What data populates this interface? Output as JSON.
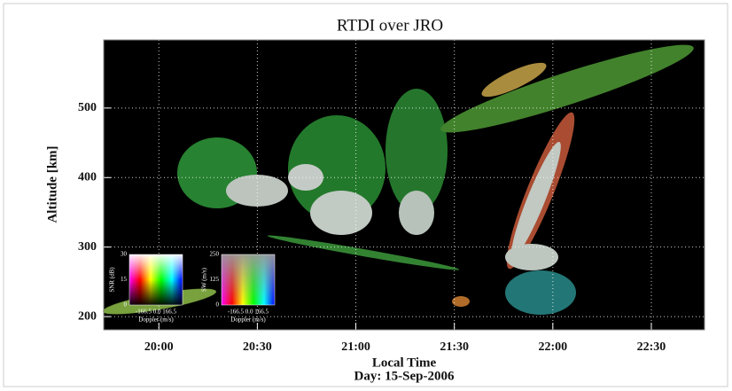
{
  "chart_data": {
    "type": "image",
    "title": "RTDI over JRO",
    "x_label": "Local Time",
    "subtitle": "Day: 15-Sep-2006",
    "y_label": "Altitude [km]",
    "xlim": [
      19.72,
      22.77
    ],
    "xticks": [
      {
        "value": 20,
        "label": "20:00"
      },
      {
        "value": 20.5,
        "label": "20:30"
      },
      {
        "value": 21,
        "label": "21:00"
      },
      {
        "value": 21.5,
        "label": "21:30"
      },
      {
        "value": 22,
        "label": "22:00"
      },
      {
        "value": 22.5,
        "label": "22:30"
      }
    ],
    "ylim": [
      181,
      598
    ],
    "yticks": [
      200,
      300,
      400,
      500
    ],
    "grid": true,
    "color_keys": [
      {
        "ylabel": "SNR (dB)",
        "yticks": [
          "30",
          "15",
          "0"
        ],
        "xticks": "-166.5 0.0 166.5",
        "xlabel": "Doppler (m/s)"
      },
      {
        "ylabel": "SW (m/s)",
        "yticks": [
          "250",
          "125",
          "0"
        ],
        "xticks": "-166.5 0.0 166.5",
        "xlabel": "Doppler (m/s)"
      }
    ]
  }
}
